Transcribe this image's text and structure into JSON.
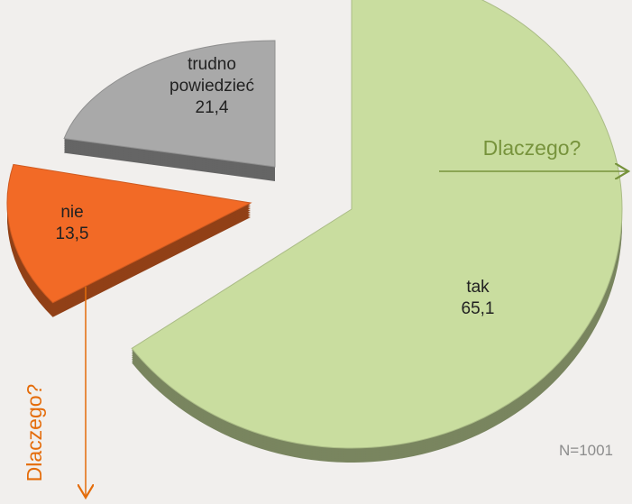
{
  "chart_data": {
    "type": "pie",
    "categories": [
      "tak",
      "nie",
      "trudno powiedzieć"
    ],
    "values": [
      65.1,
      13.5,
      21.4
    ],
    "value_labels": [
      "65,1",
      "13,5",
      "21,4"
    ],
    "colors": [
      "#c9dd9f",
      "#f26a26",
      "#a9a9a9"
    ],
    "annotations": [
      "Dlaczego?",
      "Dlaczego?",
      "N=1001"
    ]
  }
}
